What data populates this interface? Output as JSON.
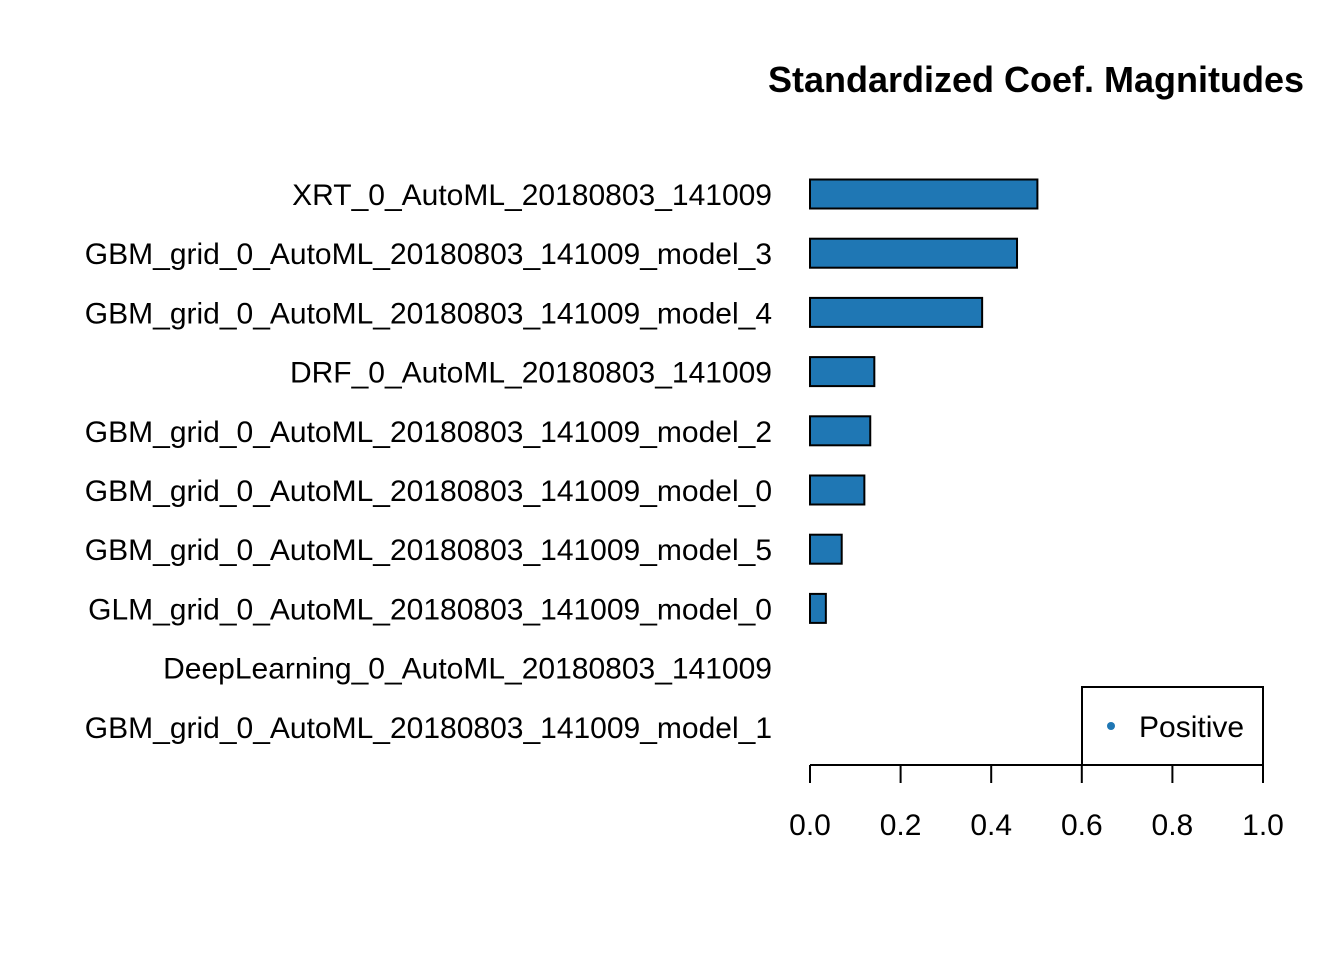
{
  "chart_data": {
    "type": "bar",
    "orientation": "horizontal",
    "title": "Standardized Coef. Magnitudes",
    "categories": [
      "XRT_0_AutoML_20180803_141009",
      "GBM_grid_0_AutoML_20180803_141009_model_3",
      "GBM_grid_0_AutoML_20180803_141009_model_4",
      "DRF_0_AutoML_20180803_141009",
      "GBM_grid_0_AutoML_20180803_141009_model_2",
      "GBM_grid_0_AutoML_20180803_141009_model_0",
      "GBM_grid_0_AutoML_20180803_141009_model_5",
      "GLM_grid_0_AutoML_20180803_141009_model_0",
      "DeepLearning_0_AutoML_20180803_141009",
      "GBM_grid_0_AutoML_20180803_141009_model_1"
    ],
    "series": [
      {
        "name": "Positive",
        "color": "#1f77b4",
        "values": [
          0.502,
          0.457,
          0.38,
          0.142,
          0.133,
          0.12,
          0.07,
          0.035,
          0.0,
          0.0
        ]
      }
    ],
    "xlim": [
      0,
      1
    ],
    "xticks": [
      "0.0",
      "0.2",
      "0.4",
      "0.6",
      "0.8",
      "1.0"
    ],
    "xtick_values": [
      0,
      0.2,
      0.4,
      0.6,
      0.8,
      1.0
    ],
    "xlabel": "",
    "ylabel": "",
    "grid": false,
    "legend": {
      "position": "bottom-right",
      "entries": [
        "Positive"
      ]
    }
  }
}
